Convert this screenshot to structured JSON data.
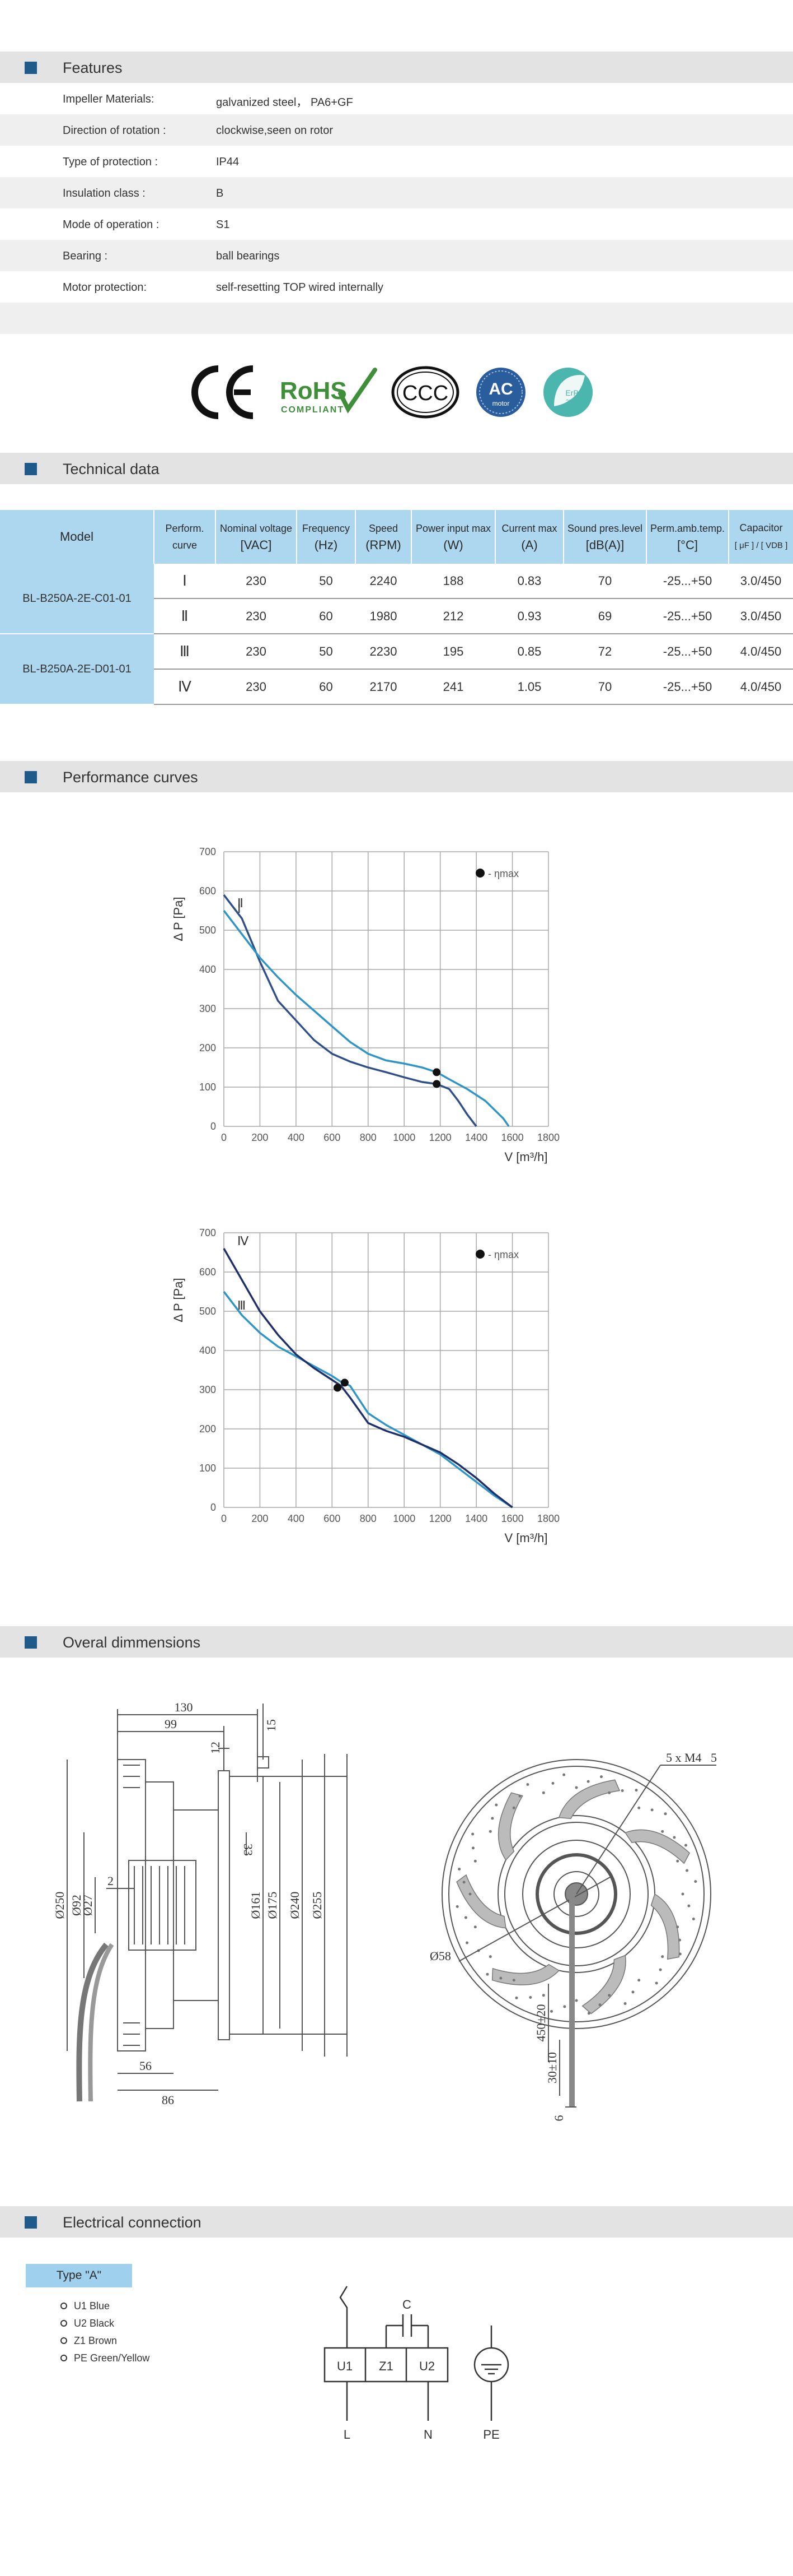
{
  "features": {
    "title": "Features",
    "rows": [
      {
        "key": "Impeller Materials:",
        "value": "galvanized steel， PA6+GF"
      },
      {
        "key": "Direction  of  rotation  :",
        "value": "clockwise,seen on rotor"
      },
      {
        "key": "Type of protection :",
        "value": "IP44"
      },
      {
        "key": "Insulation  class  :",
        "value": "B"
      },
      {
        "key": "Mode of operation :",
        "value": "S1"
      },
      {
        "key": "Bearing :",
        "value": "ball  bearings"
      },
      {
        "key": "Motor protection:",
        "value": "self-resetting TOP wired internally"
      }
    ]
  },
  "certifications": {
    "ce": "CE",
    "rohs": "RoHS",
    "rohs_sub": "COMPLIANT",
    "ccc": "CCC",
    "ac": "AC",
    "ac_sub": "motor",
    "erp": "ErP",
    "erp_year": "2015"
  },
  "technical": {
    "title": "Technical data",
    "headers": [
      {
        "l1": "Model",
        "l2": ""
      },
      {
        "l1": "Perform.",
        "l2": "curve"
      },
      {
        "l1": "Nominal voltage",
        "l2": "[VAC]"
      },
      {
        "l1": "Frequency",
        "l2": "(Hz)"
      },
      {
        "l1": "Speed",
        "l2": "(RPM)"
      },
      {
        "l1": "Power input max",
        "l2": "(W)"
      },
      {
        "l1": "Current  max",
        "l2": "(A)"
      },
      {
        "l1": "Sound pres.level",
        "l2": "[dB(A)]"
      },
      {
        "l1": "Perm.amb.temp.",
        "l2": "[°C]"
      },
      {
        "l1": "Capacitor",
        "l2": "[ μF ] / [ VDB ]"
      }
    ],
    "models": [
      "BL-B250A-2E-C01-01",
      "BL-B250A-2E-D01-01"
    ],
    "rows": [
      {
        "curve": "Ⅰ",
        "voltage": "230",
        "freq": "50",
        "speed": "2240",
        "power": "188",
        "current": "0.83",
        "sound": "70",
        "temp": "-25...+50",
        "cap": "3.0/450"
      },
      {
        "curve": "Ⅱ",
        "voltage": "230",
        "freq": "60",
        "speed": "1980",
        "power": "212",
        "current": "0.93",
        "sound": "69",
        "temp": "-25...+50",
        "cap": "3.0/450"
      },
      {
        "curve": "Ⅲ",
        "voltage": "230",
        "freq": "50",
        "speed": "2230",
        "power": "195",
        "current": "0.85",
        "sound": "72",
        "temp": "-25...+50",
        "cap": "4.0/450"
      },
      {
        "curve": "Ⅳ",
        "voltage": "230",
        "freq": "60",
        "speed": "2170",
        "power": "241",
        "current": "1.05",
        "sound": "70",
        "temp": "-25...+50",
        "cap": "4.0/450"
      }
    ]
  },
  "performance": {
    "title": "Performance curves"
  },
  "dimensions": {
    "title": "Overal dimmensions",
    "labels": [
      "130",
      "99",
      "15",
      "12",
      "33",
      "Ø250",
      "Ø92",
      "Ø27",
      "2",
      "Ø161",
      "Ø175",
      "Ø240",
      "Ø255",
      "56",
      "86",
      "5 x M4",
      "5",
      "Ø58",
      "450±20",
      "30±10",
      "6"
    ]
  },
  "electrical": {
    "title": "Electrical  connection",
    "type_label": "Type  \"A\"",
    "wires": [
      "U1  Blue",
      "U2  Black",
      "Z1  Brown",
      "PE  Green/Yellow"
    ],
    "diagram": {
      "c": "C",
      "u1": "U1",
      "z1": "Z1",
      "u2": "U2",
      "l": "L",
      "n": "N",
      "pe": "PE"
    }
  },
  "chart_data": [
    {
      "type": "line",
      "title": "",
      "xlabel": "V [m³/h]",
      "ylabel": "Δ P [Pa]",
      "xlim": [
        0,
        1800
      ],
      "ylim": [
        0,
        700
      ],
      "xticks": [
        0,
        200,
        400,
        600,
        800,
        1000,
        1200,
        1400,
        1600,
        1800
      ],
      "yticks": [
        0,
        100,
        200,
        300,
        400,
        500,
        600,
        700
      ],
      "legend": "•ηmax",
      "legend_position": "top-right",
      "series": [
        {
          "name": "Ⅰ",
          "color": "#2f4f8a",
          "x": [
            0,
            100,
            200,
            300,
            400,
            500,
            600,
            700,
            800,
            900,
            1000,
            1100,
            1180,
            1250,
            1300,
            1350,
            1400
          ],
          "y": [
            590,
            530,
            420,
            320,
            270,
            220,
            185,
            165,
            150,
            138,
            125,
            113,
            108,
            95,
            65,
            30,
            0
          ]
        },
        {
          "name": "Ⅱ",
          "color": "#2f95c6",
          "x": [
            0,
            100,
            200,
            300,
            400,
            500,
            600,
            700,
            800,
            900,
            1000,
            1100,
            1180,
            1250,
            1350,
            1450,
            1550,
            1580
          ],
          "y": [
            550,
            490,
            430,
            380,
            335,
            295,
            255,
            215,
            185,
            168,
            160,
            150,
            138,
            120,
            95,
            65,
            20,
            0
          ]
        }
      ],
      "eta_max_points": [
        {
          "x": 1180,
          "y": 108
        },
        {
          "x": 1180,
          "y": 138
        }
      ]
    },
    {
      "type": "line",
      "title": "",
      "xlabel": "V [m³/h]",
      "ylabel": "Δ P [Pa]",
      "xlim": [
        0,
        1800
      ],
      "ylim": [
        0,
        700
      ],
      "xticks": [
        0,
        200,
        400,
        600,
        800,
        1000,
        1200,
        1400,
        1600,
        1800
      ],
      "yticks": [
        0,
        100,
        200,
        300,
        400,
        500,
        600,
        700
      ],
      "legend": "•ηmax",
      "legend_position": "top-right",
      "series": [
        {
          "name": "Ⅲ",
          "color": "#2f95c6",
          "x": [
            0,
            100,
            200,
            300,
            400,
            500,
            600,
            650,
            700,
            800,
            900,
            1000,
            1100,
            1200,
            1300,
            1400,
            1500,
            1600
          ],
          "y": [
            550,
            490,
            445,
            410,
            385,
            360,
            335,
            320,
            310,
            240,
            210,
            185,
            160,
            135,
            100,
            65,
            30,
            0
          ]
        },
        {
          "name": "Ⅳ",
          "color": "#1e2f6a",
          "x": [
            0,
            100,
            200,
            300,
            400,
            500,
            600,
            650,
            700,
            800,
            900,
            1000,
            1100,
            1200,
            1300,
            1400,
            1500,
            1600
          ],
          "y": [
            660,
            580,
            500,
            440,
            390,
            355,
            325,
            310,
            280,
            215,
            195,
            180,
            160,
            140,
            110,
            75,
            35,
            0
          ]
        }
      ],
      "eta_max_points": [
        {
          "x": 630,
          "y": 305
        },
        {
          "x": 670,
          "y": 318
        }
      ]
    }
  ]
}
